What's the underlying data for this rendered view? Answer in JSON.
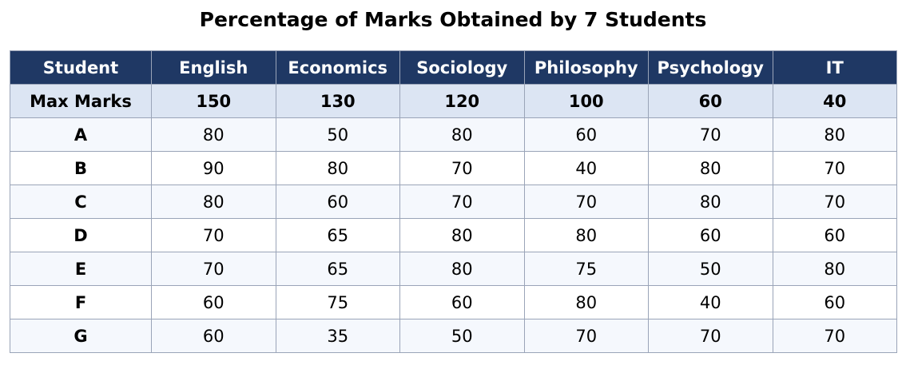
{
  "chart_data": {
    "type": "table",
    "title": "Percentage of Marks Obtained by 7 Students",
    "columns": [
      "Student",
      "English",
      "Economics",
      "Sociology",
      "Philosophy",
      "Psychology",
      "IT"
    ],
    "max_marks": {
      "label": "Max Marks",
      "values": [
        "150",
        "130",
        "120",
        "100",
        "60",
        "40"
      ]
    },
    "rows": [
      {
        "student": "A",
        "values": [
          "80",
          "50",
          "80",
          "60",
          "70",
          "80"
        ]
      },
      {
        "student": "B",
        "values": [
          "90",
          "80",
          "70",
          "40",
          "80",
          "70"
        ]
      },
      {
        "student": "C",
        "values": [
          "80",
          "60",
          "70",
          "70",
          "80",
          "70"
        ]
      },
      {
        "student": "D",
        "values": [
          "70",
          "65",
          "80",
          "80",
          "60",
          "60"
        ]
      },
      {
        "student": "E",
        "values": [
          "70",
          "65",
          "80",
          "75",
          "50",
          "80"
        ]
      },
      {
        "student": "F",
        "values": [
          "60",
          "75",
          "60",
          "80",
          "40",
          "60"
        ]
      },
      {
        "student": "G",
        "values": [
          "60",
          "35",
          "50",
          "70",
          "70",
          "70"
        ]
      }
    ]
  },
  "colors": {
    "header_bg": "#1f3864",
    "header_text": "#ffffff",
    "max_row_bg": "#dce5f3",
    "odd_row_bg": "#f5f8fd",
    "even_row_bg": "#ffffff",
    "border": "#9aa4b8"
  }
}
